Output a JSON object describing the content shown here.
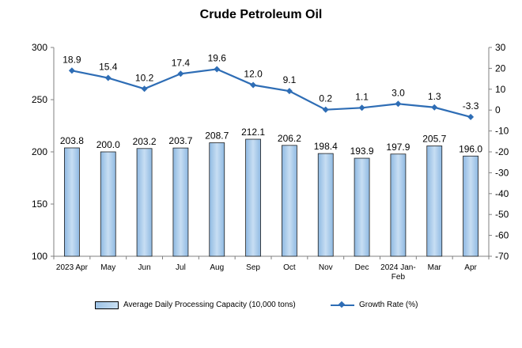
{
  "chart_data": {
    "type": "bar",
    "title": "Crude Petroleum Oil",
    "categories": [
      "2023 Apr",
      "May",
      "Jun",
      "Jul",
      "Aug",
      "Sep",
      "Oct",
      "Nov",
      "Dec",
      "2024 Jan-Feb",
      "Mar",
      "Apr"
    ],
    "series": [
      {
        "name": "Average Daily Processing Capacity (10,000 tons)",
        "type": "bar",
        "axis": "left",
        "color": "#9dc3e6",
        "values": [
          203.8,
          200.0,
          203.2,
          203.7,
          208.7,
          212.1,
          206.2,
          198.4,
          193.9,
          197.9,
          205.7,
          196.0
        ],
        "labels": [
          "203.8",
          "200.0",
          "203.2",
          "203.7",
          "208.7",
          "212.1",
          "206.2",
          "198.4",
          "193.9",
          "197.9",
          "205.7",
          "196.0"
        ]
      },
      {
        "name": "Growth Rate (%)",
        "type": "line",
        "axis": "right",
        "color": "#2e6db5",
        "values": [
          18.9,
          15.4,
          10.2,
          17.4,
          19.6,
          12.0,
          9.1,
          0.2,
          1.1,
          3.0,
          1.3,
          -3.3
        ],
        "labels": [
          "18.9",
          "15.4",
          "10.2",
          "17.4",
          "19.6",
          "12.0",
          "9.1",
          "0.2",
          "1.1",
          "3.0",
          "1.3",
          "-3.3"
        ]
      }
    ],
    "y_left": {
      "range": [
        100,
        300
      ],
      "ticks": [
        100,
        150,
        200,
        250,
        300
      ]
    },
    "y_right": {
      "range": [
        -70,
        30
      ],
      "ticks": [
        30,
        20,
        10,
        0,
        -10,
        -20,
        -30,
        -40,
        -50,
        -60,
        -70
      ]
    },
    "legend_position": "bottom",
    "grid": false
  }
}
